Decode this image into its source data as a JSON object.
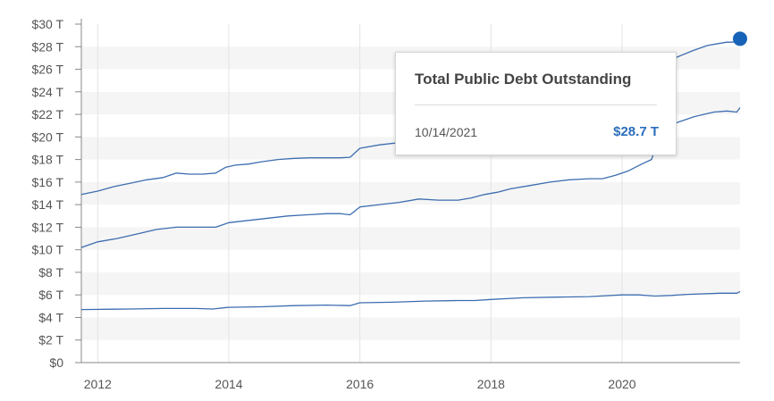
{
  "colors": {
    "line": "#3d6db0",
    "marker": "#1763b8",
    "bandAlt": "#f5f5f5",
    "value": "#2a6ebb"
  },
  "chart_data": {
    "type": "line",
    "title": "",
    "xlabel": "",
    "ylabel": "",
    "x_unit": "year",
    "xlim": [
      2011.75,
      2021.8
    ],
    "ylim": [
      0,
      30
    ],
    "xticks": [
      2012,
      2014,
      2016,
      2018,
      2020
    ],
    "xtick_labels": [
      "2012",
      "2014",
      "2016",
      "2018",
      "2020"
    ],
    "yticks": [
      0,
      2,
      4,
      6,
      8,
      10,
      12,
      14,
      16,
      18,
      20,
      22,
      24,
      26,
      28,
      30
    ],
    "ytick_labels": [
      "$0",
      "$2 T",
      "$4 T",
      "$6 T",
      "$8 T",
      "$10 T",
      "$12 T",
      "$14 T",
      "$16 T",
      "$18 T",
      "$20 T",
      "$22 T",
      "$24 T",
      "$26 T",
      "$28 T",
      "$30 T"
    ],
    "grid": {
      "horizontal_bands": true,
      "vertical_lines": true
    },
    "legend": "none",
    "series": [
      {
        "x": [
          2011.75,
          2012.0,
          2012.25,
          2012.5,
          2012.75,
          2013.0,
          2013.2,
          2013.4,
          2013.6,
          2013.8,
          2013.95,
          2014.1,
          2014.3,
          2014.5,
          2014.75,
          2015.0,
          2015.25,
          2015.5,
          2015.7,
          2015.85,
          2016.0,
          2016.3,
          2016.6,
          2016.9,
          2017.2,
          2017.4,
          2017.7,
          2017.95,
          2018.1,
          2018.3,
          2018.6,
          2018.9,
          2019.2,
          2019.45,
          2019.55,
          2019.8,
          2020.0,
          2020.15,
          2020.25,
          2020.35,
          2020.45,
          2020.6,
          2020.85,
          2021.1,
          2021.3,
          2021.4,
          2021.6,
          2021.7,
          2021.8
        ],
        "values": [
          14.9,
          15.2,
          15.6,
          15.9,
          16.2,
          16.4,
          16.8,
          16.7,
          16.7,
          16.8,
          17.3,
          17.5,
          17.6,
          17.8,
          18.0,
          18.1,
          18.15,
          18.15,
          18.15,
          18.2,
          19.0,
          19.3,
          19.5,
          19.9,
          19.8,
          20.1,
          20.4,
          21.0,
          21.2,
          21.4,
          21.6,
          22.0,
          22.0,
          22.0,
          22.2,
          22.8,
          23.2,
          23.5,
          23.8,
          25.0,
          25.6,
          26.3,
          27.1,
          27.7,
          28.1,
          28.2,
          28.4,
          28.4,
          28.7
        ]
      },
      {
        "x": [
          2011.75,
          2012.0,
          2012.3,
          2012.6,
          2012.9,
          2013.2,
          2013.5,
          2013.8,
          2014.0,
          2014.3,
          2014.6,
          2014.9,
          2015.2,
          2015.5,
          2015.7,
          2015.85,
          2016.0,
          2016.3,
          2016.6,
          2016.9,
          2017.2,
          2017.5,
          2017.7,
          2017.9,
          2018.1,
          2018.3,
          2018.6,
          2018.9,
          2019.2,
          2019.5,
          2019.7,
          2019.9,
          2020.1,
          2020.2,
          2020.3,
          2020.45,
          2020.6,
          2020.85,
          2021.1,
          2021.4,
          2021.6,
          2021.75,
          2021.8
        ],
        "values": [
          10.2,
          10.7,
          11.0,
          11.4,
          11.8,
          12.0,
          12.0,
          12.0,
          12.4,
          12.6,
          12.8,
          13.0,
          13.1,
          13.2,
          13.2,
          13.1,
          13.8,
          14.0,
          14.2,
          14.5,
          14.4,
          14.4,
          14.6,
          14.9,
          15.1,
          15.4,
          15.7,
          16.0,
          16.2,
          16.3,
          16.3,
          16.6,
          17.0,
          17.3,
          17.6,
          18.0,
          20.6,
          21.3,
          21.8,
          22.2,
          22.3,
          22.2,
          22.6
        ]
      },
      {
        "x": [
          2011.75,
          2012.5,
          2013.0,
          2013.5,
          2013.75,
          2014.0,
          2014.5,
          2015.0,
          2015.5,
          2015.85,
          2016.0,
          2016.5,
          2017.0,
          2017.5,
          2017.75,
          2018.0,
          2018.5,
          2019.0,
          2019.5,
          2020.0,
          2020.25,
          2020.5,
          2020.75,
          2021.0,
          2021.5,
          2021.75,
          2021.8
        ],
        "values": [
          4.7,
          4.75,
          4.8,
          4.8,
          4.75,
          4.9,
          4.95,
          5.05,
          5.1,
          5.05,
          5.3,
          5.35,
          5.45,
          5.5,
          5.5,
          5.6,
          5.75,
          5.8,
          5.85,
          6.0,
          6.0,
          5.9,
          5.95,
          6.05,
          6.15,
          6.15,
          6.3
        ]
      }
    ],
    "highlight_point": {
      "x": 2021.8,
      "value": 28.7
    }
  },
  "tooltip": {
    "title": "Total Public Debt Outstanding",
    "date": "10/14/2021",
    "value": "$28.7 T"
  }
}
